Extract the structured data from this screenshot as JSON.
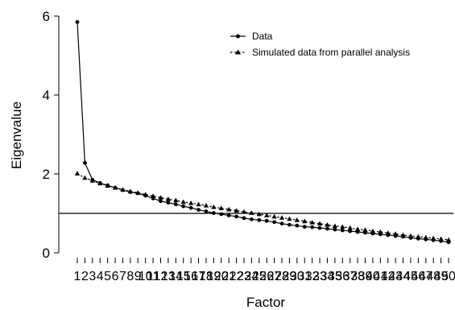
{
  "chart_data": {
    "type": "line",
    "xlabel": "Factor",
    "ylabel": "Eigenvalue",
    "xlim": [
      1,
      50
    ],
    "ylim": [
      0,
      6
    ],
    "y_ticks": [
      0,
      2,
      4,
      6
    ],
    "x_tick_labels": [
      "1",
      "2",
      "3",
      "4",
      "5",
      "6",
      "7",
      "8",
      "9",
      "10",
      "11",
      "12",
      "13",
      "14",
      "15",
      "16",
      "17",
      "18",
      "19",
      "20",
      "21",
      "22",
      "23",
      "24",
      "25",
      "26",
      "27",
      "28",
      "29",
      "30",
      "31",
      "32",
      "33",
      "34",
      "35",
      "36",
      "37",
      "38",
      "39",
      "40",
      "41",
      "42",
      "43",
      "44",
      "45",
      "46",
      "47",
      "48",
      "49",
      "50"
    ],
    "reference_line": {
      "y": 1
    },
    "legend_position": "top-right",
    "grid": false,
    "series": [
      {
        "name": "Data",
        "marker": "circle",
        "line_style": "solid",
        "values": [
          5.85,
          2.28,
          1.85,
          1.77,
          1.71,
          1.65,
          1.59,
          1.54,
          1.51,
          1.45,
          1.38,
          1.31,
          1.27,
          1.23,
          1.18,
          1.14,
          1.09,
          1.05,
          1.01,
          0.98,
          0.95,
          0.92,
          0.88,
          0.85,
          0.83,
          0.81,
          0.78,
          0.74,
          0.71,
          0.69,
          0.66,
          0.65,
          0.63,
          0.61,
          0.59,
          0.57,
          0.55,
          0.53,
          0.51,
          0.49,
          0.47,
          0.45,
          0.43,
          0.41,
          0.38,
          0.36,
          0.34,
          0.32,
          0.3,
          0.27
        ]
      },
      {
        "name": "Simulated data from parallel analysis",
        "marker": "triangle",
        "line_style": "dashed",
        "values": [
          2.01,
          1.9,
          1.83,
          1.76,
          1.7,
          1.65,
          1.6,
          1.56,
          1.52,
          1.48,
          1.44,
          1.4,
          1.36,
          1.33,
          1.29,
          1.26,
          1.23,
          1.2,
          1.16,
          1.13,
          1.1,
          1.07,
          1.04,
          1.01,
          0.98,
          0.95,
          0.92,
          0.89,
          0.86,
          0.83,
          0.8,
          0.77,
          0.74,
          0.71,
          0.68,
          0.66,
          0.63,
          0.6,
          0.58,
          0.55,
          0.53,
          0.5,
          0.48,
          0.45,
          0.43,
          0.41,
          0.39,
          0.37,
          0.35,
          0.33
        ]
      }
    ]
  }
}
